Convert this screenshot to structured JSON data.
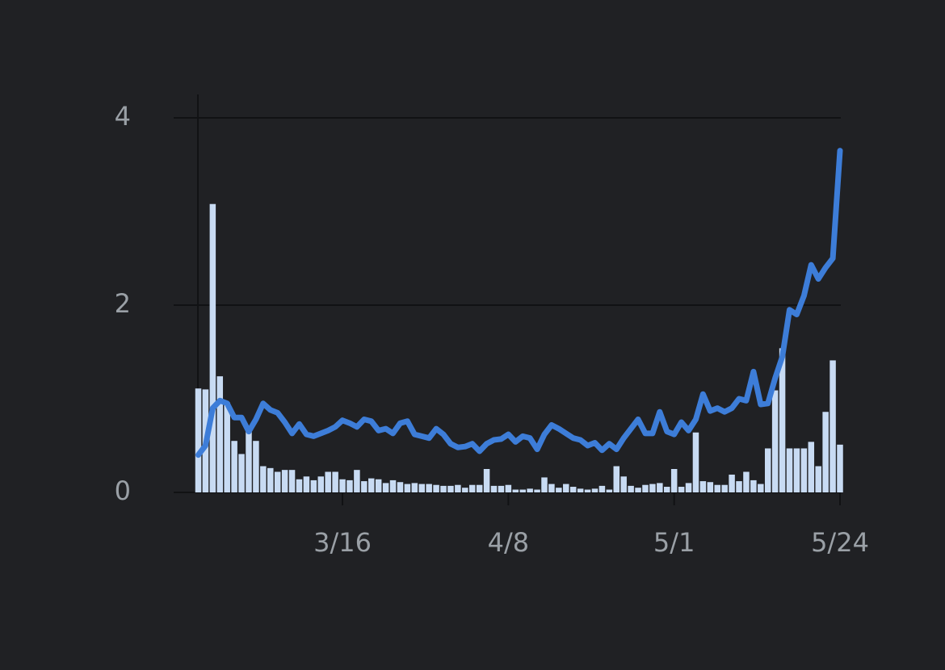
{
  "chart_data": {
    "type": "bar_line",
    "categories": [
      null,
      null,
      null,
      null,
      null,
      null,
      null,
      null,
      null,
      null,
      null,
      null,
      null,
      null,
      null,
      null,
      null,
      null,
      null,
      null,
      "3/16",
      null,
      null,
      null,
      null,
      null,
      null,
      null,
      null,
      null,
      null,
      null,
      null,
      null,
      null,
      null,
      null,
      null,
      null,
      null,
      null,
      null,
      null,
      "4/8",
      null,
      null,
      null,
      null,
      null,
      null,
      null,
      null,
      null,
      null,
      null,
      null,
      null,
      null,
      null,
      null,
      null,
      null,
      null,
      null,
      null,
      null,
      "5/1",
      null,
      null,
      null,
      null,
      null,
      null,
      null,
      null,
      null,
      null,
      null,
      null,
      null,
      null,
      null,
      null,
      null,
      null,
      null,
      null,
      null,
      null,
      "5/24"
    ],
    "series": [
      {
        "kind": "bar",
        "color": "#c8dbf3",
        "values": [
          1.11,
          1.1,
          3.08,
          1.24,
          0.96,
          0.55,
          0.41,
          0.69,
          0.55,
          0.28,
          0.26,
          0.22,
          0.24,
          0.24,
          0.14,
          0.17,
          0.13,
          0.17,
          0.22,
          0.22,
          0.14,
          0.13,
          0.24,
          0.12,
          0.15,
          0.14,
          0.1,
          0.13,
          0.11,
          0.09,
          0.1,
          0.09,
          0.09,
          0.08,
          0.07,
          0.07,
          0.08,
          0.05,
          0.08,
          0.08,
          0.25,
          0.07,
          0.07,
          0.08,
          0.03,
          0.03,
          0.04,
          0.03,
          0.16,
          0.09,
          0.05,
          0.09,
          0.06,
          0.04,
          0.03,
          0.04,
          0.07,
          0.03,
          0.28,
          0.17,
          0.07,
          0.05,
          0.08,
          0.09,
          0.1,
          0.06,
          0.25,
          0.06,
          0.1,
          0.64,
          0.12,
          0.11,
          0.08,
          0.08,
          0.19,
          0.12,
          0.22,
          0.13,
          0.09,
          0.47,
          1.09,
          1.54,
          0.47,
          0.47,
          0.47,
          0.54,
          0.28,
          0.86,
          1.41,
          0.51
        ]
      },
      {
        "kind": "line",
        "color": "#3d7dd8",
        "values": [
          0.4,
          0.5,
          0.9,
          0.98,
          0.95,
          0.8,
          0.8,
          0.65,
          0.78,
          0.95,
          0.88,
          0.85,
          0.75,
          0.63,
          0.73,
          0.62,
          0.6,
          0.63,
          0.66,
          0.7,
          0.77,
          0.74,
          0.7,
          0.78,
          0.76,
          0.66,
          0.68,
          0.63,
          0.74,
          0.76,
          0.62,
          0.6,
          0.58,
          0.68,
          0.62,
          0.52,
          0.48,
          0.49,
          0.52,
          0.44,
          0.52,
          0.56,
          0.57,
          0.62,
          0.54,
          0.6,
          0.58,
          0.46,
          0.62,
          0.72,
          0.68,
          0.63,
          0.58,
          0.56,
          0.5,
          0.53,
          0.45,
          0.52,
          0.46,
          0.58,
          0.68,
          0.78,
          0.63,
          0.63,
          0.86,
          0.65,
          0.62,
          0.75,
          0.66,
          0.78,
          1.05,
          0.87,
          0.9,
          0.86,
          0.9,
          1.0,
          0.98,
          1.29,
          0.94,
          0.95,
          1.22,
          1.45,
          1.95,
          1.9,
          2.1,
          2.43,
          2.28,
          2.4,
          2.5,
          3.65
        ]
      }
    ],
    "ylim": [
      0,
      4.25
    ],
    "yticks": [
      0,
      2,
      4
    ],
    "grid": true
  }
}
